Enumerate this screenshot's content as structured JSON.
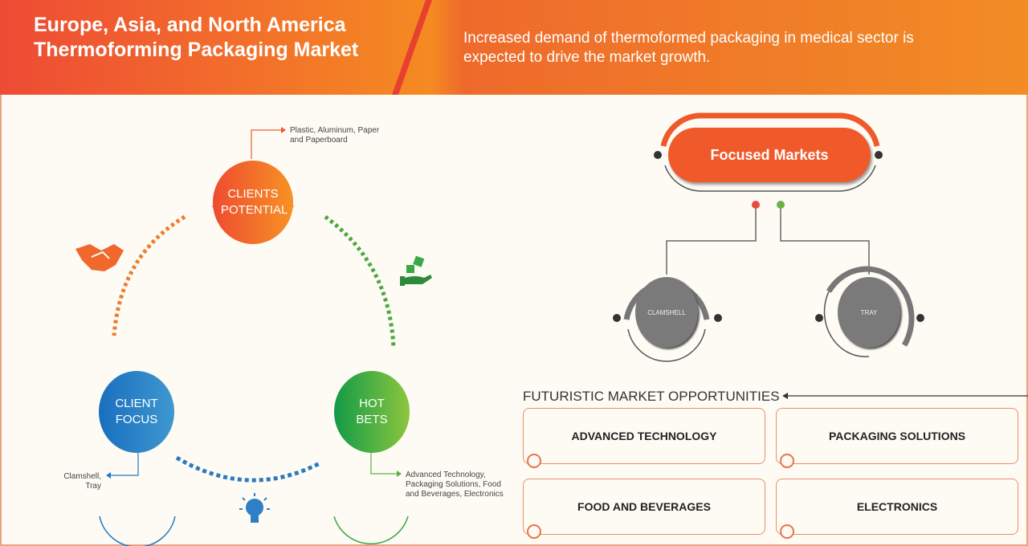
{
  "header": {
    "title": "Europe, Asia, and North America Thermoforming Packaging Market",
    "subtitle": "Increased demand of thermoformed packaging in medical sector is expected to drive the market growth."
  },
  "cycle": {
    "clients_potential": {
      "label": "CLIENTS POTENTIAL",
      "note": "Plastic, Aluminum, Paper and Paperboard",
      "color": "#f0592a"
    },
    "client_focus": {
      "label": "CLIENT FOCUS",
      "note": "Clamshell, Tray",
      "color": "#2478c4"
    },
    "hot_bets": {
      "label": "HOT BETS",
      "note": "Advanced Technology, Packaging Solutions, Food and Beverages, Electronics",
      "color": "#3aa845"
    },
    "icons": [
      "handshake-icon",
      "dice-hand-icon",
      "lightbulb-icon"
    ]
  },
  "focused": {
    "title": "Focused Markets",
    "items": [
      "CLAMSHELL",
      "TRAY"
    ]
  },
  "opportunities": {
    "title": "FUTURISTIC MARKET OPPORTUNITIES",
    "items": [
      "ADVANCED TECHNOLOGY",
      "PACKAGING SOLUTIONS",
      "FOOD AND BEVERAGES",
      "ELECTRONICS"
    ]
  }
}
